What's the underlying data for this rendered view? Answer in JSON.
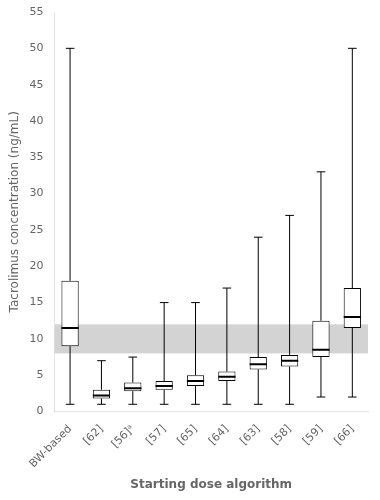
{
  "chart_data": {
    "type": "box",
    "xlabel": "Starting dose algorithm",
    "ylabel": "Tacrolimus concentration (ng/mL)",
    "categories": [
      "BW-based",
      "[62]",
      "[56]ᵃ",
      "[57]",
      "[65]",
      "[64]",
      "[63]",
      "[58]",
      "[59]",
      "[66]"
    ],
    "values": [
      {
        "whislo": 1.0,
        "q1": 9.0,
        "med": 11.5,
        "q3": 18.0,
        "whishi": 50.0
      },
      {
        "whislo": 1.0,
        "q1": 1.8,
        "med": 2.2,
        "q3": 3.0,
        "whishi": 7.0
      },
      {
        "whislo": 1.0,
        "q1": 2.8,
        "med": 3.2,
        "q3": 4.0,
        "whishi": 7.5
      },
      {
        "whislo": 1.0,
        "q1": 3.0,
        "med": 3.5,
        "q3": 4.2,
        "whishi": 15.0
      },
      {
        "whislo": 1.0,
        "q1": 3.5,
        "med": 4.2,
        "q3": 5.0,
        "whishi": 15.0
      },
      {
        "whislo": 1.0,
        "q1": 4.2,
        "med": 4.8,
        "q3": 5.5,
        "whishi": 17.0
      },
      {
        "whislo": 1.0,
        "q1": 5.8,
        "med": 6.5,
        "q3": 7.5,
        "whishi": 24.0
      },
      {
        "whislo": 1.0,
        "q1": 6.2,
        "med": 7.0,
        "q3": 7.8,
        "whishi": 27.0
      },
      {
        "whislo": 2.0,
        "q1": 7.5,
        "med": 8.5,
        "q3": 12.5,
        "whishi": 33.0
      },
      {
        "whislo": 2.0,
        "q1": 11.5,
        "med": 13.0,
        "q3": 17.0,
        "whishi": 50.0
      }
    ],
    "color": "black",
    "reference_band": {
      "range": [
        8.0,
        12.0
      ],
      "color": "#d3d3d3"
    },
    "ylim": [
      0,
      55
    ],
    "yticks": [
      0,
      5,
      10,
      15,
      20,
      25,
      30,
      35,
      40,
      45,
      50,
      55
    ],
    "grid": false
  }
}
